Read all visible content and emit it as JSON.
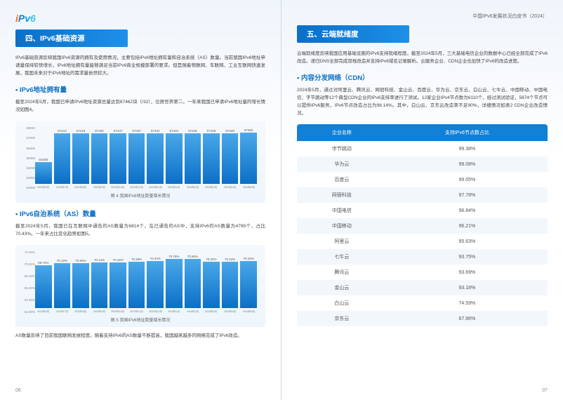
{
  "header": {
    "right_text": "中国IPv6发展状况白皮书（2024）"
  },
  "left": {
    "section_title": "四、IPv6基础资源",
    "intro": "IPv6基础资源反映我国IPv6资源的拥有及使用情况，主要包括IPv6地址拥有量和自治系统（AS）数量。当前我国IPv6地址申请量保持较快增长，IPv6地址拥有量能够满足当前IPv6商业规模部署的要求。但是随着物联网、车联网、工业互联网快速发展，我国未来对于IPv6地址的需求量依然较大。",
    "sub1_title": "IPv6地址拥有量",
    "sub1_text": "截至2024年5月，我国已申请IPv6地址资源总量达到67462块（/32），位居世界第二。一年来我国已申请IPv6地址量的增长情况如图4。",
    "chart1": {
      "title": "图 4 我国IPv6地址数量增长情况",
      "y_min": 62000,
      "y_max": 68000,
      "y_step": 1000,
      "bars": [
        {
          "label": "2022年5月",
          "value": 64328
        },
        {
          "label": "2022年7月",
          "value": 67410
        },
        {
          "label": "2022年8月",
          "value": 67419
        },
        {
          "label": "2022年9月",
          "value": 67432
        },
        {
          "label": "2022年10月",
          "value": 67437
        },
        {
          "label": "2022年11月",
          "value": 67437
        },
        {
          "label": "2022年12月",
          "value": 67434
        },
        {
          "label": "2024年1月",
          "value": 67434
        },
        {
          "label": "2024年2月",
          "value": 67436
        },
        {
          "label": "2024年3月",
          "value": 67436
        },
        {
          "label": "2024年4月",
          "value": 67449
        },
        {
          "label": "2024年5月",
          "value": 67462
        }
      ],
      "bar_color_top": "#4aa8e8",
      "bar_color_bottom": "#0b6fc7",
      "bg_color": "#f0f6fc"
    },
    "sub2_title": "IPv6自治系统（AS）数量",
    "sub2_text": "截至2024年5月，我国已在互联网中通告的AS数量为6814个，在已通告的AS中，支持IPv6的AS数量为4799个，占比70.43%。一年来占比变化趋势如图5。",
    "chart2": {
      "title": "图 5 我国IPv6地址数量增长情况",
      "y_min": 62,
      "y_max": 72,
      "y_step": 2,
      "y_suffix": ".00%",
      "bars": [
        {
          "label": "2022年6月",
          "value": 69.72
        },
        {
          "label": "2022年7月",
          "value": 70.1
        },
        {
          "label": "2022年8月",
          "value": 70.06
        },
        {
          "label": "2022年9月",
          "value": 70.14
        },
        {
          "label": "2022年10月",
          "value": 70.16
        },
        {
          "label": "2022年11月",
          "value": 70.28
        },
        {
          "label": "2022年12月",
          "value": 70.44
        },
        {
          "label": "2024年1月",
          "value": 70.78
        },
        {
          "label": "2024年2月",
          "value": 70.8
        },
        {
          "label": "2024年3月",
          "value": 70.32
        },
        {
          "label": "2024年4月",
          "value": 70.34
        },
        {
          "label": "2024年5月",
          "value": 70.43
        }
      ],
      "bar_color_top": "#4aa8e8",
      "bar_color_bottom": "#0b6fc7"
    },
    "outro": "AS数量反映了目前我国联网发展程度。随着支持IPv6的AS数量不断提高，我国越来越多的网络完成了IPv6改造。",
    "page_num": "06"
  },
  "right": {
    "section_title": "五、云端就绪度",
    "intro": "云端就绪度反映我国应用基础设施的IPv6支持就绪程度。截至2024年5月，三大基础电信企业的数据中心已经全部完成了IPv6改造。递归DNS全部完成双栈改造并支持IPv6域名记录解析。云服务企业、CDN企业也加快了IPv6的改造进度。",
    "sub1_title": "内容分发网络（CDN）",
    "sub1_text": "2024年5月，通过对阿里云、腾讯云、网宿科技、金山云、百度云、华为云、京东云、白山云、七牛云、中国移动、中国电信、字节跳动等12个典型CDN企业的IPv6支持率进行了测试。12家企业IPv4节点数为6110个，经过测试验证，5874个节点可以提供IPv6服务，IPv6节点改造占比为96.14%。其中，白山云、京东云改造率不足90%，详细情况如表2 CDN企业改造情况。",
    "table": {
      "columns": [
        "企业名称",
        "支持IPv6节点数占比"
      ],
      "rows": [
        [
          "字节跳动",
          "99.38%"
        ],
        [
          "华为云",
          "99.08%"
        ],
        [
          "百度云",
          "99.05%"
        ],
        [
          "网宿科技",
          "97.78%"
        ],
        [
          "中国电信",
          "96.84%"
        ],
        [
          "中国移动",
          "96.21%"
        ],
        [
          "阿里云",
          "95.63%"
        ],
        [
          "七牛云",
          "93.75%"
        ],
        [
          "腾讯云",
          "93.69%"
        ],
        [
          "金山云",
          "93.18%"
        ],
        [
          "白山云",
          "74.59%"
        ],
        [
          "京东云",
          "67.86%"
        ]
      ],
      "header_bg": "#1280d4",
      "header_color": "#ffffff",
      "row_even_bg": "#f2f7fc",
      "row_odd_bg": "#ffffff"
    },
    "page_num": "07"
  }
}
